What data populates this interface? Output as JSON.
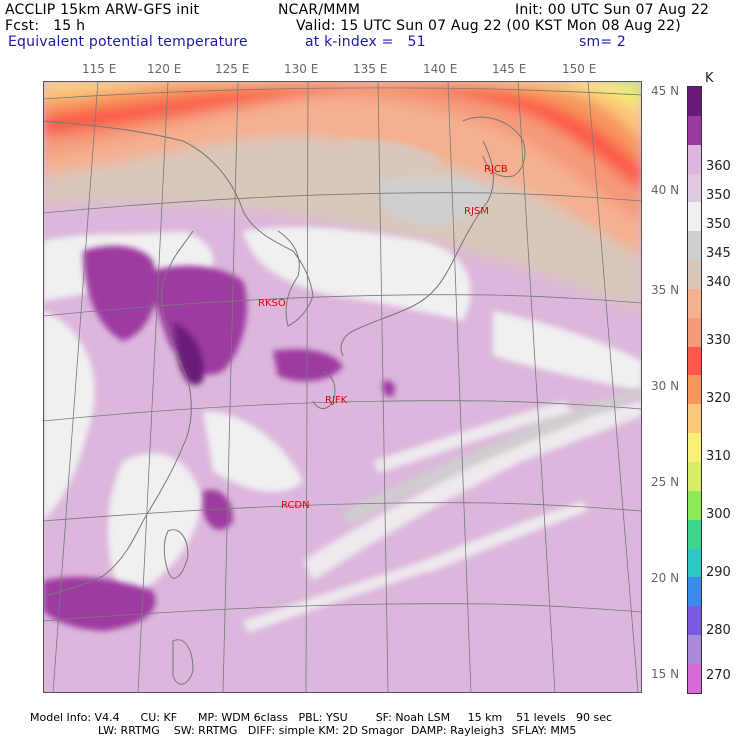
{
  "header": {
    "line1_left": "ACCLIP 15km ARW-GFS init",
    "line1_center": "NCAR/MMM",
    "line1_right": "Init: 00 UTC Sun 07 Aug 22",
    "line2_left": "Fcst:   15 h",
    "line2_right": "Valid: 15 UTC Sun 07 Aug 22 (00 KST Mon 08 Aug 22)",
    "line3_left": "Equivalent potential temperature",
    "line3_center": "at k-index =   51",
    "line3_right": "sm= 2"
  },
  "map": {
    "lon_labels": [
      "115 E",
      "120 E",
      "125 E",
      "130 E",
      "135 E",
      "140 E",
      "145 E",
      "150 E"
    ],
    "lat_labels": [
      "45 N",
      "40 N",
      "35 N",
      "30 N",
      "25 N",
      "20 N",
      "15 N"
    ],
    "stations": [
      "RJCB",
      "RJSM",
      "RKSO",
      "RJFK",
      "RCDN"
    ]
  },
  "colorbar": {
    "unit": "K",
    "labels": [
      "360",
      "350",
      "340",
      "330",
      "320",
      "310",
      "300",
      "290",
      "280",
      "270"
    ],
    "colors": [
      "#6a1a78",
      "#9d3aa0",
      "#dcb6dc",
      "#e0c8e0",
      "#f0f0f0",
      "#cfcfcf",
      "#d9c7bb",
      "#f4b090",
      "#f59a78",
      "#fb5a4a",
      "#f7955f",
      "#fbc87a",
      "#f7f07a",
      "#d7ee6a",
      "#8ee85a",
      "#3dd68a",
      "#2ec7c3",
      "#3d8be8",
      "#7a5ae0",
      "#a88ad8",
      "#d56ad8"
    ]
  },
  "footer": {
    "line1": "Model Info: V4.4      CU: KF      MP: WDM 6class   PBL: YSU        SF: Noah LSM     15 km    51 levels   90 sec",
    "line2": "LW: RRTMG    SW: RRTMG   DIFF: simple KM: 2D Smagor  DAMP: Rayleigh3  SFLAY: MM5"
  }
}
